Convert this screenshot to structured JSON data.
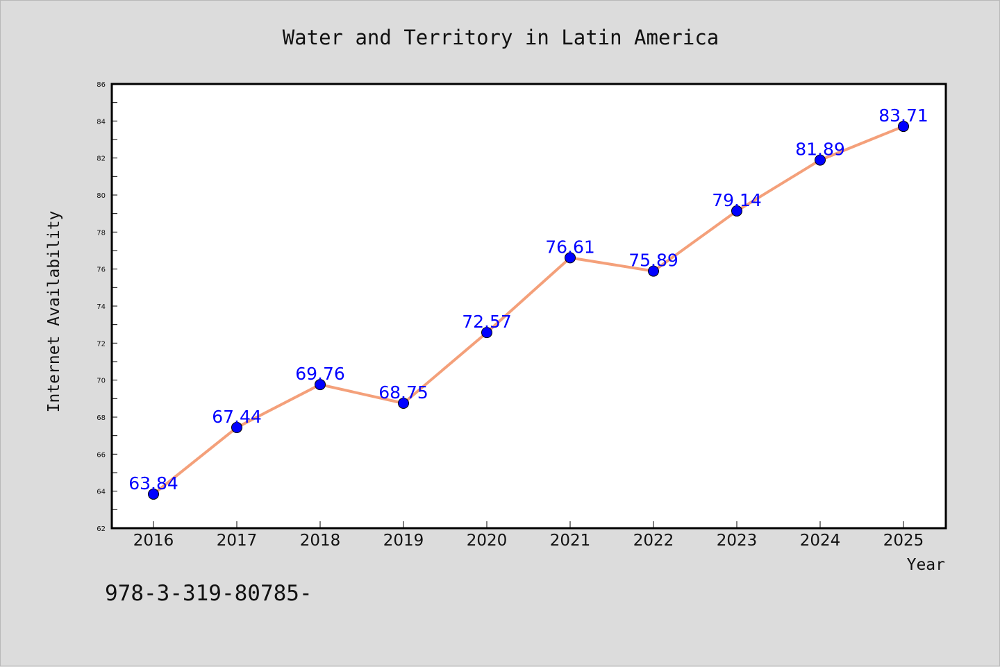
{
  "chart_data": {
    "type": "line",
    "title": "Water and Territory in Latin America",
    "xlabel": "Year",
    "ylabel": "Internet Availability",
    "x": [
      "2016",
      "2017",
      "2018",
      "2019",
      "2020",
      "2021",
      "2022",
      "2023",
      "2024",
      "2025"
    ],
    "series": [
      {
        "values": [
          63.84,
          67.44,
          69.76,
          68.75,
          72.57,
          76.61,
          75.89,
          79.14,
          81.89,
          83.71
        ]
      }
    ],
    "data_labels": [
      "63.84",
      "67.44",
      "69.76",
      "68.75",
      "72.57",
      "76.61",
      "75.89",
      "79.14",
      "81.89",
      "83.71"
    ],
    "ylim": [
      62,
      86
    ],
    "yticks": [
      "62",
      "64",
      "66",
      "68",
      "70",
      "72",
      "74",
      "76",
      "78",
      "80",
      "82",
      "84",
      "86"
    ],
    "grid": false,
    "legend": "none",
    "colors": {
      "line": "#f4a07a",
      "marker": "#0000ff",
      "label": "#0000ff",
      "background": "#dcdcdc",
      "plot_background": "#ffffff"
    }
  },
  "footer_text": "978-3-319-80785-"
}
